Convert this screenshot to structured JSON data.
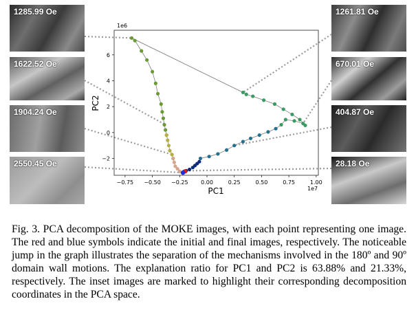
{
  "insets_left": [
    "1285.99 Oe",
    "1622.52 Oe",
    "1904.24 Oe",
    "2550.45 Oe"
  ],
  "insets_right": [
    "1261.81 Oe",
    "670.01 Oe",
    "404.87 Oe",
    "28.18 Oe"
  ],
  "chart_data": {
    "type": "scatter",
    "title": "",
    "xlabel": "PC1",
    "ylabel": "PC2",
    "x_scale_label": "1e7",
    "y_scale_label": "1e6",
    "xlim": [
      -0.85,
      1.02
    ],
    "ylim": [
      -3.3,
      7.9
    ],
    "xticks": [
      -0.75,
      -0.5,
      -0.25,
      0.0,
      0.25,
      0.5,
      0.75,
      1.0
    ],
    "xtick_labels": [
      "−0.75",
      "−0.50",
      "−0.25",
      "0.00",
      "0.25",
      "0.50",
      "0.75",
      "1.00"
    ],
    "yticks": [
      -2,
      0,
      2,
      4,
      6
    ],
    "ytick_labels": [
      "−2",
      "0",
      "2",
      "4",
      "6"
    ],
    "series": [
      {
        "name": "upper-left branch",
        "color": "#6a9a35",
        "x": [
          -0.69,
          -0.66,
          -0.6,
          -0.55,
          -0.5,
          -0.47,
          -0.45,
          -0.42,
          -0.41,
          -0.4,
          -0.39,
          -0.38,
          -0.37
        ],
        "y": [
          7.3,
          7.1,
          6.3,
          5.6,
          4.7,
          3.8,
          3.0,
          2.2,
          1.6,
          1.1,
          0.6,
          0.2,
          -0.2
        ]
      },
      {
        "name": "yellow-olive segment",
        "color": "#b5b042",
        "x": [
          -0.37,
          -0.36,
          -0.35,
          -0.34,
          -0.32,
          -0.31
        ],
        "y": [
          -0.2,
          -0.6,
          -1.0,
          -1.4,
          -1.7,
          -2.0
        ]
      },
      {
        "name": "pink-tan segment",
        "color": "#d7a48c",
        "x": [
          -0.31,
          -0.3,
          -0.29,
          -0.27,
          -0.25,
          -0.22
        ],
        "y": [
          -2.0,
          -2.3,
          -2.6,
          -2.8,
          -3.0,
          -3.1
        ]
      },
      {
        "name": "dark blue start",
        "color": "#0d2b7a",
        "x": [
          -0.21,
          -0.19,
          -0.16,
          -0.13,
          -0.11,
          -0.09,
          -0.07
        ],
        "y": [
          -3.0,
          -2.95,
          -2.85,
          -2.7,
          -2.55,
          -2.4,
          -2.25
        ]
      },
      {
        "name": "teal rise",
        "color": "#25708f",
        "x": [
          -0.06,
          0.02,
          0.1,
          0.18,
          0.25,
          0.33,
          0.4,
          0.48,
          0.56,
          0.63
        ],
        "y": [
          -2.0,
          -1.85,
          -1.65,
          -1.35,
          -1.0,
          -0.7,
          -0.45,
          -0.2,
          0.05,
          0.3
        ]
      },
      {
        "name": "right branch",
        "color": "#3a9b62",
        "x": [
          0.68,
          0.72,
          0.8,
          0.88,
          0.9,
          0.85,
          0.78,
          0.7,
          0.62,
          0.52,
          0.42,
          0.36,
          0.33
        ],
        "y": [
          0.6,
          1.0,
          0.9,
          0.7,
          0.55,
          1.0,
          1.4,
          1.8,
          2.2,
          2.5,
          2.8,
          2.95,
          3.1
        ]
      }
    ],
    "jump_line": {
      "x": [
        0.33,
        -0.69
      ],
      "y": [
        3.1,
        7.3
      ],
      "color": "#808080"
    },
    "markers": [
      {
        "name": "initial image",
        "color": "#e41a1c",
        "x": -0.2,
        "y": -3.0
      },
      {
        "name": "final image",
        "color": "#1f2fd4",
        "x": -0.22,
        "y": -3.1
      }
    ]
  },
  "caption": "Fig. 3. PCA decomposition of the MOKE images, with each point representing one image. The red and blue symbols indicate the initial and final images, respectively. The noticeable jump in the graph illustrates the separation of the mechanisms involved in the 180º and 90º domain wall motions. The explanation ratio for PC1 and PC2 is 63.88% and 21.33%, respectively. The inset images are marked to highlight their corresponding decomposition coordinates in the PCA space."
}
